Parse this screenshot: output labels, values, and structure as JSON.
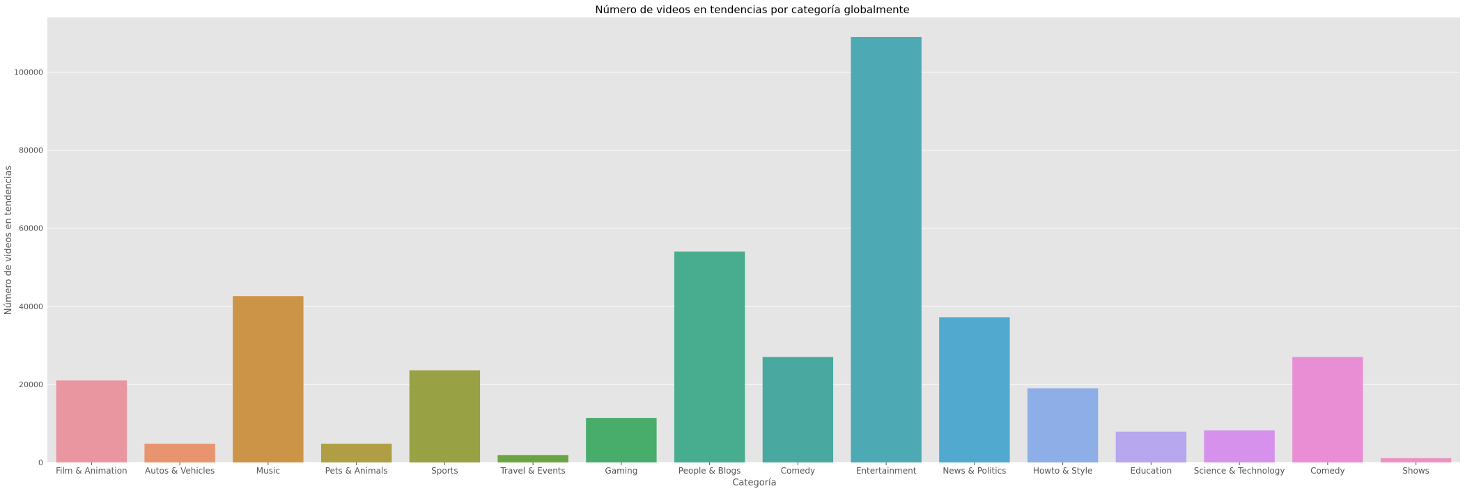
{
  "chart_data": {
    "type": "bar",
    "title": "Número de videos en tendencias por categoría globalmente",
    "xlabel": "Categoría",
    "ylabel": "Número de videos en tendencias",
    "ylim": [
      0,
      114000
    ],
    "yticks": [
      0,
      20000,
      40000,
      60000,
      80000,
      100000
    ],
    "grid": true,
    "legend": "none",
    "categories": [
      "Film & Animation",
      "Autos & Vehicles",
      "Music",
      "Pets & Animals",
      "Sports",
      "Travel & Events",
      "Gaming",
      "People & Blogs",
      "Comedy",
      "Entertainment",
      "News & Politics",
      "Howto & Style",
      "Education",
      "Science & Technology",
      "Comedy",
      "Shows"
    ],
    "values": [
      21000,
      4800,
      42600,
      4800,
      23600,
      1900,
      11400,
      54000,
      27000,
      109000,
      37200,
      19000,
      7900,
      8200,
      27000,
      1100
    ],
    "colors": [
      "#ea96a0",
      "#e8956f",
      "#cb9446",
      "#b09e44",
      "#98a143",
      "#6ba543",
      "#48ad6b",
      "#48ad8e",
      "#49a9a1",
      "#4daab4",
      "#51a9cf",
      "#8eaee7",
      "#b6a7ef",
      "#d591ec",
      "#e98ed5",
      "#ec92c3"
    ],
    "background_color": "#e5e5e5",
    "grid_color": "#ffffff"
  }
}
